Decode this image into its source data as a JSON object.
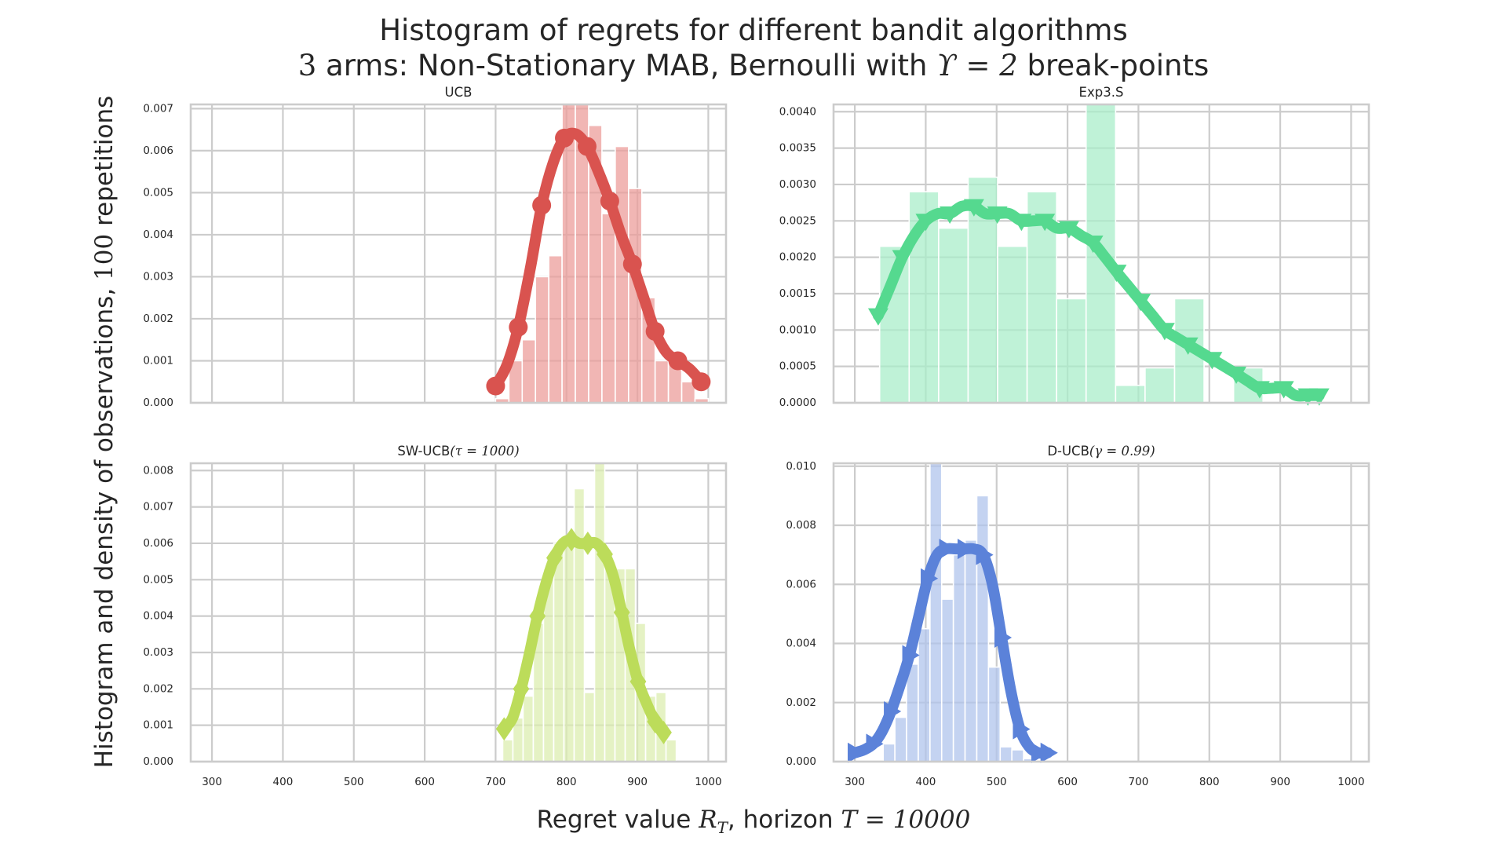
{
  "figure": {
    "title_line1": "Histogram of regrets for different bandit algorithms",
    "title_line2": {
      "pre": "3",
      "mid": " arms: Non-Stationary MAB, Bernoulli with ",
      "math": "ϒ = 2",
      "post": " break-points"
    },
    "ylabel": {
      "pre": "Histogram and density of observations, ",
      "math": "100",
      "post": " repetitions"
    },
    "xlabel": {
      "pre": "Regret value ",
      "math1": "R",
      "math1_sub": "T",
      "mid": ", horizon ",
      "math2": "T = 10000"
    }
  },
  "chart_data": [
    {
      "type": "bar",
      "title": "UCB",
      "title_math": "",
      "color": "#d9534f",
      "bar_color": "#ec9e9b",
      "marker": "circle",
      "xlim": [
        270,
        1025
      ],
      "ylim": [
        0,
        0.0071
      ],
      "xticks": [
        300,
        400,
        500,
        600,
        700,
        800,
        900,
        1000
      ],
      "xtick_labels": [
        "300",
        "400",
        "500",
        "600",
        "700",
        "800",
        "900",
        "1000"
      ],
      "yticks": [
        0,
        0.001,
        0.002,
        0.003,
        0.004,
        0.005,
        0.006,
        0.007
      ],
      "ytick_labels": [
        "0.000",
        "0.001",
        "0.002",
        "0.003",
        "0.004",
        "0.005",
        "0.006",
        "0.007"
      ],
      "show_xtick_labels": false,
      "bin_edges": [
        700,
        718.75,
        737.5,
        756.25,
        775,
        793.75,
        812.5,
        831.25,
        850,
        868.75,
        887.5,
        906.25,
        925,
        943.75,
        962.5,
        981.25,
        1000
      ],
      "bin_heights": [
        0.0001,
        0.001,
        0.0015,
        0.003,
        0.0035,
        0.0071,
        0.0071,
        0.0066,
        0.0045,
        0.0061,
        0.0051,
        0.0025,
        0.001,
        0.001,
        0.0005,
        0.0001
      ],
      "density_x": [
        700,
        716,
        732,
        749,
        765,
        781,
        797,
        813,
        829,
        845,
        861,
        877,
        893,
        909,
        925,
        941,
        957,
        974,
        990
      ],
      "density_y": [
        0.0004,
        0.0009,
        0.0018,
        0.0032,
        0.0047,
        0.0057,
        0.0063,
        0.0064,
        0.0061,
        0.0055,
        0.0048,
        0.004,
        0.0033,
        0.0025,
        0.0017,
        0.0012,
        0.001,
        0.0008,
        0.0005
      ]
    },
    {
      "type": "bar",
      "title": "Exp3.S",
      "title_math": "",
      "color": "#55d98f",
      "bar_color": "#aaeec9",
      "marker": "triangle-down",
      "xlim": [
        270,
        1025
      ],
      "ylim": [
        0,
        0.0041
      ],
      "xticks": [
        300,
        400,
        500,
        600,
        700,
        800,
        900,
        1000
      ],
      "xtick_labels": [
        "300",
        "400",
        "500",
        "600",
        "700",
        "800",
        "900",
        "1000"
      ],
      "yticks": [
        0,
        0.0005,
        0.001,
        0.0015,
        0.002,
        0.0025,
        0.003,
        0.0035,
        0.004
      ],
      "ytick_labels": [
        "0.0000",
        "0.0005",
        "0.0010",
        "0.0015",
        "0.0020",
        "0.0025",
        "0.0030",
        "0.0035",
        "0.0040"
      ],
      "show_xtick_labels": false,
      "bin_edges": [
        335,
        376.6,
        418.2,
        459.8,
        501.4,
        543,
        584.6,
        626.2,
        667.8,
        709.4,
        751,
        792.6,
        834.2,
        875.8,
        917.4,
        959
      ],
      "bin_heights": [
        0.00215,
        0.0029,
        0.0024,
        0.0031,
        0.00215,
        0.0029,
        0.00143,
        0.0041,
        0.00024,
        0.00048,
        0.00143,
        0,
        0.00048,
        0,
        0
      ],
      "density_x": [
        333,
        350,
        367,
        384,
        400,
        417,
        434,
        451,
        468,
        484,
        501,
        518,
        535,
        552,
        568,
        585,
        602,
        619,
        636,
        653,
        669,
        686,
        703,
        720,
        737,
        753,
        770,
        787,
        804,
        821,
        838,
        854,
        871,
        888,
        905,
        922,
        939,
        955
      ],
      "density_y": [
        0.0012,
        0.0016,
        0.002,
        0.0023,
        0.0025,
        0.0026,
        0.0026,
        0.0027,
        0.0027,
        0.0026,
        0.0026,
        0.0026,
        0.0025,
        0.0025,
        0.0025,
        0.0024,
        0.0024,
        0.0023,
        0.0022,
        0.002,
        0.0018,
        0.0016,
        0.0014,
        0.0012,
        0.001,
        0.0009,
        0.0008,
        0.0007,
        0.0006,
        0.0005,
        0.0004,
        0.0003,
        0.0002,
        0.0002,
        0.0002,
        0.0001,
        0.0001,
        0.0001
      ]
    },
    {
      "type": "bar",
      "title": "SW-UCB",
      "title_math": "(τ = 1000)",
      "color": "#bcdc5a",
      "bar_color": "#dcedb0",
      "marker": "diamond",
      "xlim": [
        270,
        1025
      ],
      "ylim": [
        0,
        0.0082
      ],
      "xticks": [
        300,
        400,
        500,
        600,
        700,
        800,
        900,
        1000
      ],
      "xtick_labels": [
        "300",
        "400",
        "500",
        "600",
        "700",
        "800",
        "900",
        "1000"
      ],
      "yticks": [
        0,
        0.001,
        0.002,
        0.003,
        0.004,
        0.005,
        0.006,
        0.007,
        0.008
      ],
      "ytick_labels": [
        "0.000",
        "0.001",
        "0.002",
        "0.003",
        "0.004",
        "0.005",
        "0.006",
        "0.007",
        "0.008"
      ],
      "show_xtick_labels": true,
      "bin_edges": [
        710,
        724.4,
        738.8,
        753.2,
        767.6,
        782,
        796.4,
        810.8,
        825.2,
        839.6,
        854,
        868.4,
        882.8,
        897.2,
        911.6,
        926,
        940.4,
        954.8
      ],
      "bin_heights": [
        0.0006,
        0.0012,
        0.0018,
        0.0038,
        0.0053,
        0.006,
        0.006,
        0.0075,
        0.0019,
        0.0082,
        0.0053,
        0.0053,
        0.0053,
        0.0038,
        0.0018,
        0.0019,
        0.0006
      ],
      "density_x": [
        712,
        724,
        736,
        748,
        759,
        771,
        783,
        795,
        807,
        818,
        830,
        842,
        854,
        866,
        878,
        889,
        901,
        913,
        925,
        937
      ],
      "density_y": [
        0.0009,
        0.0012,
        0.002,
        0.003,
        0.004,
        0.0049,
        0.0056,
        0.006,
        0.0061,
        0.006,
        0.006,
        0.006,
        0.0057,
        0.0051,
        0.0041,
        0.0031,
        0.0022,
        0.0016,
        0.0011,
        0.0008
      ]
    },
    {
      "type": "bar",
      "title": "D-UCB",
      "title_math": "(γ = 0.99)",
      "color": "#5b82d9",
      "bar_color": "#b0c4ec",
      "marker": "triangle-right",
      "xlim": [
        270,
        1025
      ],
      "ylim": [
        0,
        0.0101
      ],
      "xticks": [
        300,
        400,
        500,
        600,
        700,
        800,
        900,
        1000
      ],
      "xtick_labels": [
        "300",
        "400",
        "500",
        "600",
        "700",
        "800",
        "900",
        "1000"
      ],
      "yticks": [
        0,
        0.002,
        0.004,
        0.006,
        0.008,
        0.01
      ],
      "ytick_labels": [
        "0.000",
        "0.002",
        "0.004",
        "0.006",
        "0.008",
        "0.010"
      ],
      "show_xtick_labels": true,
      "bin_edges": [
        340,
        356.5,
        373,
        389.5,
        406,
        422.5,
        439,
        455.5,
        472,
        488.5,
        505,
        521.5,
        538,
        554.5
      ],
      "bin_heights": [
        0.0006,
        0.0015,
        0.0033,
        0.0045,
        0.0101,
        0.0055,
        0.007,
        0.0075,
        0.009,
        0.0032,
        0.0005,
        0.0004,
        0.0001
      ],
      "density_x": [
        300,
        313,
        326,
        338,
        351,
        364,
        377,
        390,
        403,
        416,
        429,
        442,
        455,
        468,
        481,
        494,
        507,
        520,
        533,
        546,
        559,
        572
      ],
      "density_y": [
        0.0003,
        0.0004,
        0.0006,
        0.001,
        0.0017,
        0.0026,
        0.0036,
        0.0049,
        0.0062,
        0.007,
        0.0072,
        0.0072,
        0.0072,
        0.0072,
        0.007,
        0.006,
        0.0042,
        0.0024,
        0.0011,
        0.0005,
        0.0003,
        0.0003
      ]
    }
  ]
}
